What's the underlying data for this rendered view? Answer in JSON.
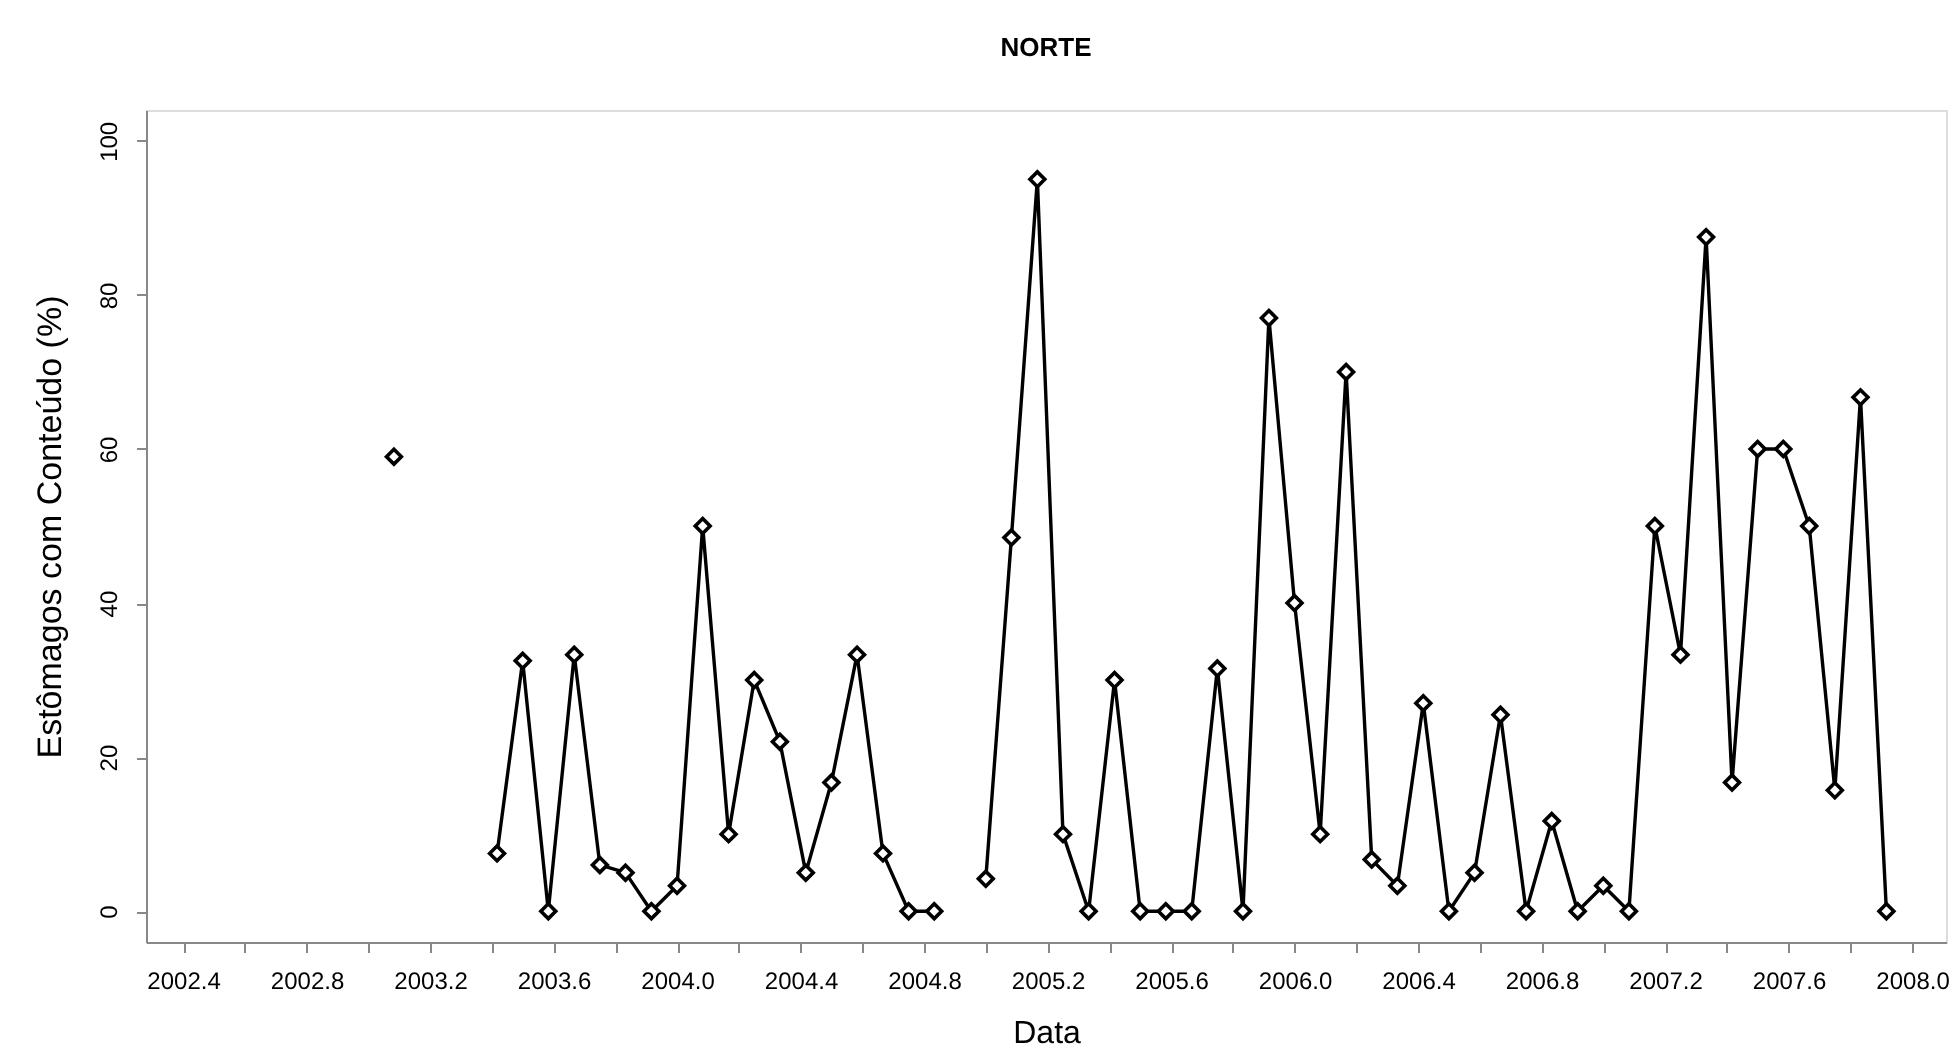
{
  "chart_data": {
    "type": "line",
    "title": "NORTE",
    "xlabel": "Data",
    "ylabel": "Estômagos com Conteúdo (%)",
    "x": [
      2003.083,
      2003.167,
      2003.25,
      2003.333,
      2003.417,
      2003.5,
      2003.583,
      2003.667,
      2003.75,
      2003.833,
      2003.917,
      2004,
      2004.083,
      2004.167,
      2004.25,
      2004.333,
      2004.417,
      2004.5,
      2004.583,
      2004.667,
      2004.75,
      2004.833,
      2004.917,
      2005,
      2005.083,
      2005.167,
      2005.25,
      2005.333,
      2005.417,
      2005.5,
      2005.583,
      2005.667,
      2005.75,
      2005.833,
      2005.917,
      2006,
      2006.083,
      2006.167,
      2006.25,
      2006.333,
      2006.417,
      2006.5,
      2006.583,
      2006.667,
      2006.75,
      2006.833,
      2006.917,
      2007,
      2007.083,
      2007.167,
      2007.25,
      2007.333,
      2007.417,
      2007.5,
      2007.583,
      2007.667,
      2007.75,
      2007.833,
      2007.917
    ],
    "series": [
      {
        "color": "#000000",
        "values": [
          59,
          null,
          null,
          null,
          7.5,
          32.5,
          0,
          33.3,
          6,
          5,
          0,
          3.3,
          50,
          10,
          30,
          22,
          5,
          16.7,
          33.3,
          7.5,
          0,
          0,
          null,
          4.2,
          48.5,
          95,
          10,
          0,
          30,
          0,
          0,
          0,
          31.5,
          0,
          77,
          40,
          10,
          70,
          6.7,
          3.3,
          27,
          0,
          5,
          25.5,
          0,
          11.7,
          0,
          3.3,
          0,
          50,
          33.3,
          87.5,
          16.7,
          60,
          60,
          50,
          15.7,
          66.7,
          0
        ]
      }
    ],
    "xlim": [
      2002.28,
      2008.11
    ],
    "xticks": [
      2002.4,
      {
        "value": 2002.6,
        "label": null
      },
      2002.8,
      {
        "value": 2003,
        "label": null
      },
      2003.2,
      {
        "value": 2003.4,
        "label": null
      },
      2003.6,
      {
        "value": 2003.8,
        "label": null
      },
      {
        "value": 2004,
        "label": "2004.0"
      },
      {
        "value": 2004.2,
        "label": null
      },
      2004.4,
      {
        "value": 2004.6,
        "label": null
      },
      2004.8,
      {
        "value": 2005,
        "label": null
      },
      2005.2,
      {
        "value": 2005.4,
        "label": null
      },
      2005.6,
      {
        "value": 2005.8,
        "label": null
      },
      {
        "value": 2006,
        "label": "2006.0"
      },
      {
        "value": 2006.2,
        "label": null
      },
      2006.4,
      {
        "value": 2006.6,
        "label": null
      },
      2006.8,
      {
        "value": 2007,
        "label": null
      },
      2007.2,
      {
        "value": 2007.4,
        "label": null
      },
      2007.6,
      {
        "value": 2007.8,
        "label": null
      },
      {
        "value": 2008,
        "label": "2008.0"
      }
    ],
    "ylim": [
      -4,
      104
    ],
    "yticks": [
      0,
      20,
      40,
      60,
      80,
      100
    ],
    "marker": "diamond",
    "line_style": "solid"
  }
}
